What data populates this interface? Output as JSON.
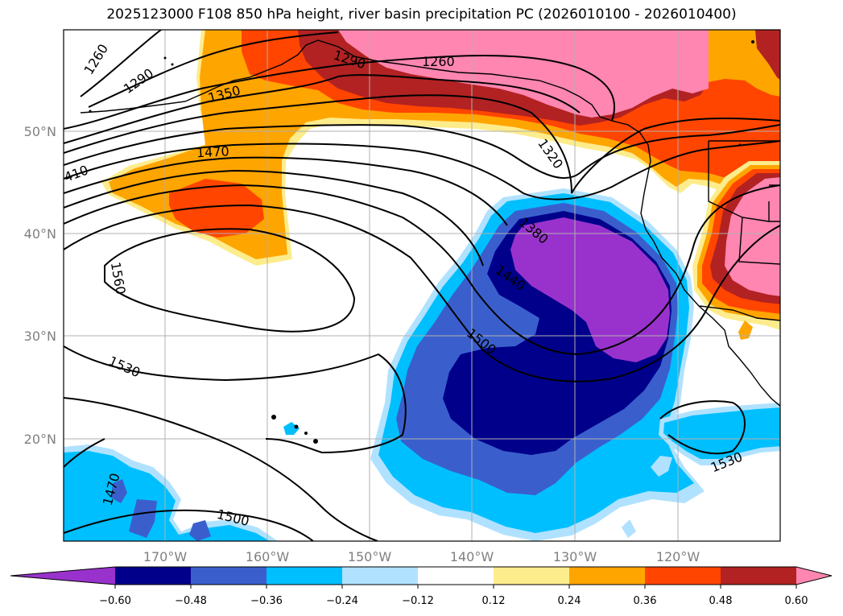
{
  "title": "2025123000 F108 850 hPa height, river basin precipitation PC (2026010100 - 2026010400)",
  "lat_labels": [
    "50°N",
    "40°N",
    "30°N",
    "20°N"
  ],
  "lon_labels": [
    "170°W",
    "160°W",
    "150°W",
    "140°W",
    "130°W",
    "120°W"
  ],
  "contour_labels": [
    "1260",
    "1290",
    "1350",
    "1470",
    "1560",
    "1530",
    "1470",
    "1500",
    "1290",
    "1260",
    "1320",
    "1380",
    "1440",
    "1500",
    "1530",
    "410"
  ],
  "colorbar": {
    "ticks": [
      "−0.60",
      "−0.48",
      "−0.36",
      "−0.24",
      "−0.12",
      "0.12",
      "0.24",
      "0.36",
      "0.48",
      "0.60"
    ],
    "colors": [
      "#9932cc",
      "#00008b",
      "#3a5fcd",
      "#00bfff",
      "#b0e2ff",
      "#ffffff",
      "#fdec8c",
      "#ffa500",
      "#ff4500",
      "#b22222",
      "#ff86b0"
    ]
  },
  "colors": {
    "purple": "#9932cc",
    "navy": "#00008b",
    "royal_blue": "#3a5fcd",
    "deep_sky_blue": "#00bfff",
    "light_blue": "#b0e2ff",
    "light_yellow": "#fdec8c",
    "orange": "#ffa500",
    "orange_red": "#ff4500",
    "firebrick": "#b22222",
    "pink": "#ff86b0",
    "gridline": "#b0b0b0",
    "axis_label": "#808080"
  }
}
